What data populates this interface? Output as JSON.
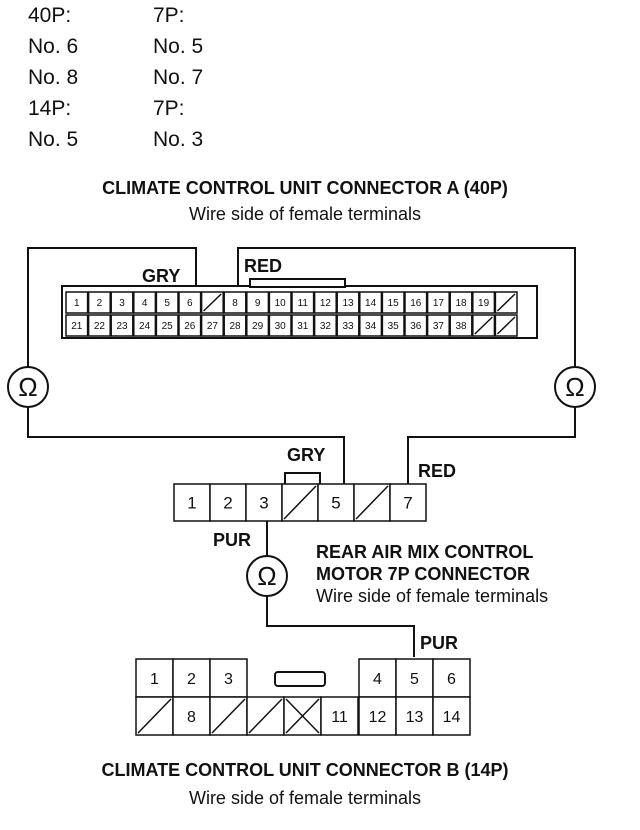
{
  "pin_table": {
    "rows": [
      [
        "40P:",
        "7P:"
      ],
      [
        "No. 6",
        "No. 5"
      ],
      [
        "No. 8",
        "No. 7"
      ],
      [
        "14P:",
        "7P:"
      ],
      [
        "No. 5",
        "No. 3"
      ]
    ]
  },
  "connector_a": {
    "title": "CLIMATE CONTROL UNIT CONNECTOR A (40P)",
    "subtitle": "Wire side of female terminals",
    "top_row": [
      "1",
      "2",
      "3",
      "4",
      "5",
      "6",
      "",
      "8",
      "9",
      "10",
      "11",
      "12",
      "13",
      "14",
      "15",
      "16",
      "17",
      "18",
      "19",
      ""
    ],
    "bottom_row": [
      "21",
      "22",
      "23",
      "24",
      "25",
      "26",
      "27",
      "28",
      "29",
      "30",
      "31",
      "32",
      "33",
      "34",
      "35",
      "36",
      "37",
      "38",
      "",
      ""
    ]
  },
  "motor_connector": {
    "title_line1": "REAR AIR MIX CONTROL",
    "title_line2": "MOTOR 7P CONNECTOR",
    "subtitle": "Wire side of female terminals",
    "cells": [
      "1",
      "2",
      "3",
      "",
      "5",
      "",
      "7"
    ]
  },
  "connector_b": {
    "title": "CLIMATE CONTROL UNIT CONNECTOR B (14P)",
    "subtitle": "Wire side of female terminals",
    "top_row": [
      "1",
      "2",
      "3",
      "",
      "",
      "",
      "4",
      "5",
      "6"
    ],
    "bottom_row": [
      "",
      "8",
      "",
      "",
      "",
      "11",
      "12",
      "13",
      "14"
    ]
  },
  "wires": {
    "gry": "GRY",
    "red": "RED",
    "pur": "PUR"
  },
  "meter_symbol": "Ω"
}
